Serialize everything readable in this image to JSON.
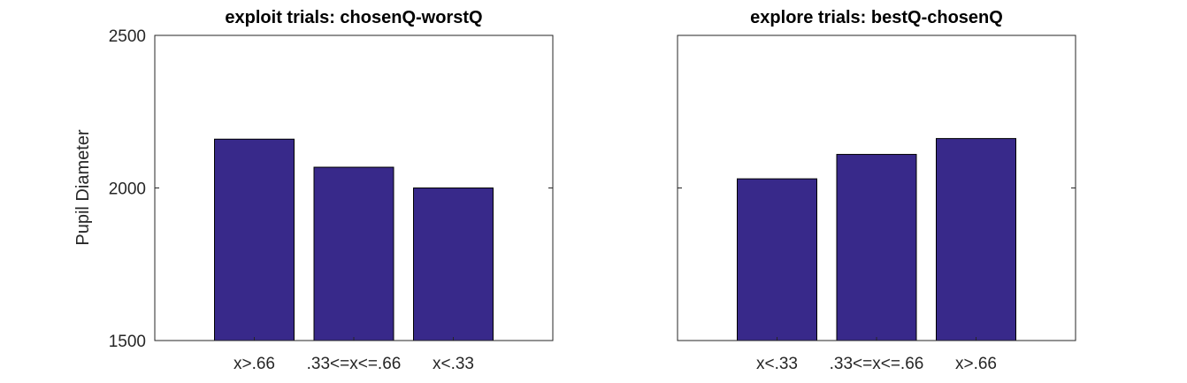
{
  "chart_data": [
    {
      "type": "bar",
      "title": "exploit trials: chosenQ-worstQ",
      "ylabel": "Pupil Diameter",
      "xlabel": "",
      "categories": [
        "x>.66",
        ".33<=x<=.66",
        "x<.33"
      ],
      "values": [
        2160,
        2068,
        2000
      ],
      "ylim": [
        1500,
        2500
      ],
      "yticks": [
        "1500",
        "2000",
        "2500"
      ],
      "bar_color": "#38298a",
      "grid": false
    },
    {
      "type": "bar",
      "title": "explore trials: bestQ-chosenQ",
      "ylabel": "",
      "xlabel": "",
      "categories": [
        "x<.33",
        ".33<=x<=.66",
        "x>.66"
      ],
      "values": [
        2030,
        2110,
        2162
      ],
      "ylim": [
        1500,
        2500
      ],
      "yticks": [],
      "bar_color": "#38298a",
      "grid": false
    }
  ]
}
